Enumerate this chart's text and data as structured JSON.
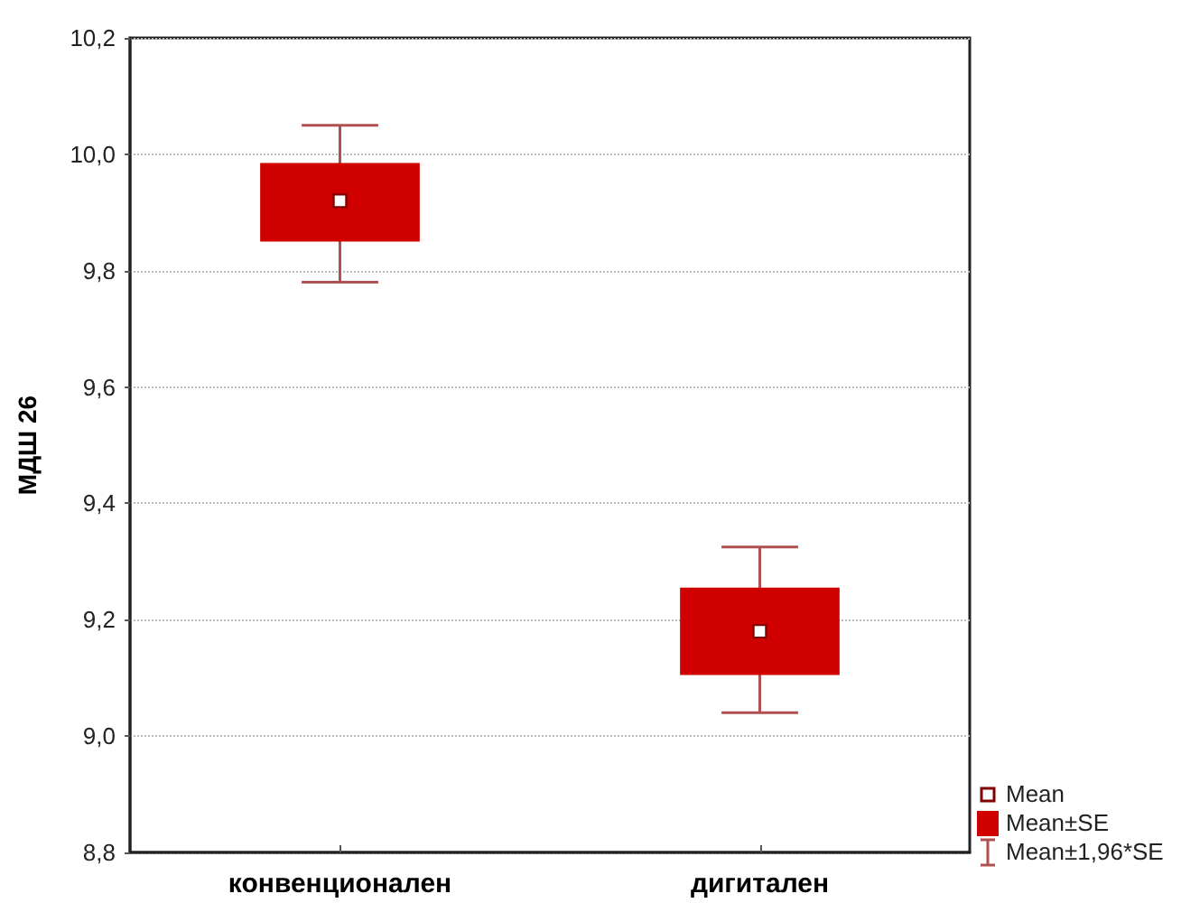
{
  "chart_data": {
    "type": "box",
    "ylabel": "МДШ 26",
    "categories": [
      "конвенционален",
      "дигитален"
    ],
    "series": [
      {
        "color": "#d00000",
        "boxes": [
          {
            "low": 9.78,
            "q1": 9.85,
            "median": 9.92,
            "q3": 9.985,
            "high": 10.05
          },
          {
            "low": 9.04,
            "q1": 9.105,
            "median": 9.18,
            "q3": 9.255,
            "high": 9.325
          }
        ]
      }
    ],
    "ylim": [
      8.8,
      10.2
    ],
    "yticks": [
      {
        "value": 8.8,
        "label": "8,8"
      },
      {
        "value": 9.0,
        "label": "9,0"
      },
      {
        "value": 9.2,
        "label": "9,2"
      },
      {
        "value": 9.4,
        "label": "9,4"
      },
      {
        "value": 9.6,
        "label": "9,6"
      },
      {
        "value": 9.8,
        "label": "9,8"
      },
      {
        "value": 10.0,
        "label": "10,0"
      },
      {
        "value": 10.2,
        "label": "10,2"
      }
    ],
    "grid": "y",
    "annotations": [
      "Mean",
      "Mean±SE",
      "Mean±1,96*SE"
    ]
  }
}
